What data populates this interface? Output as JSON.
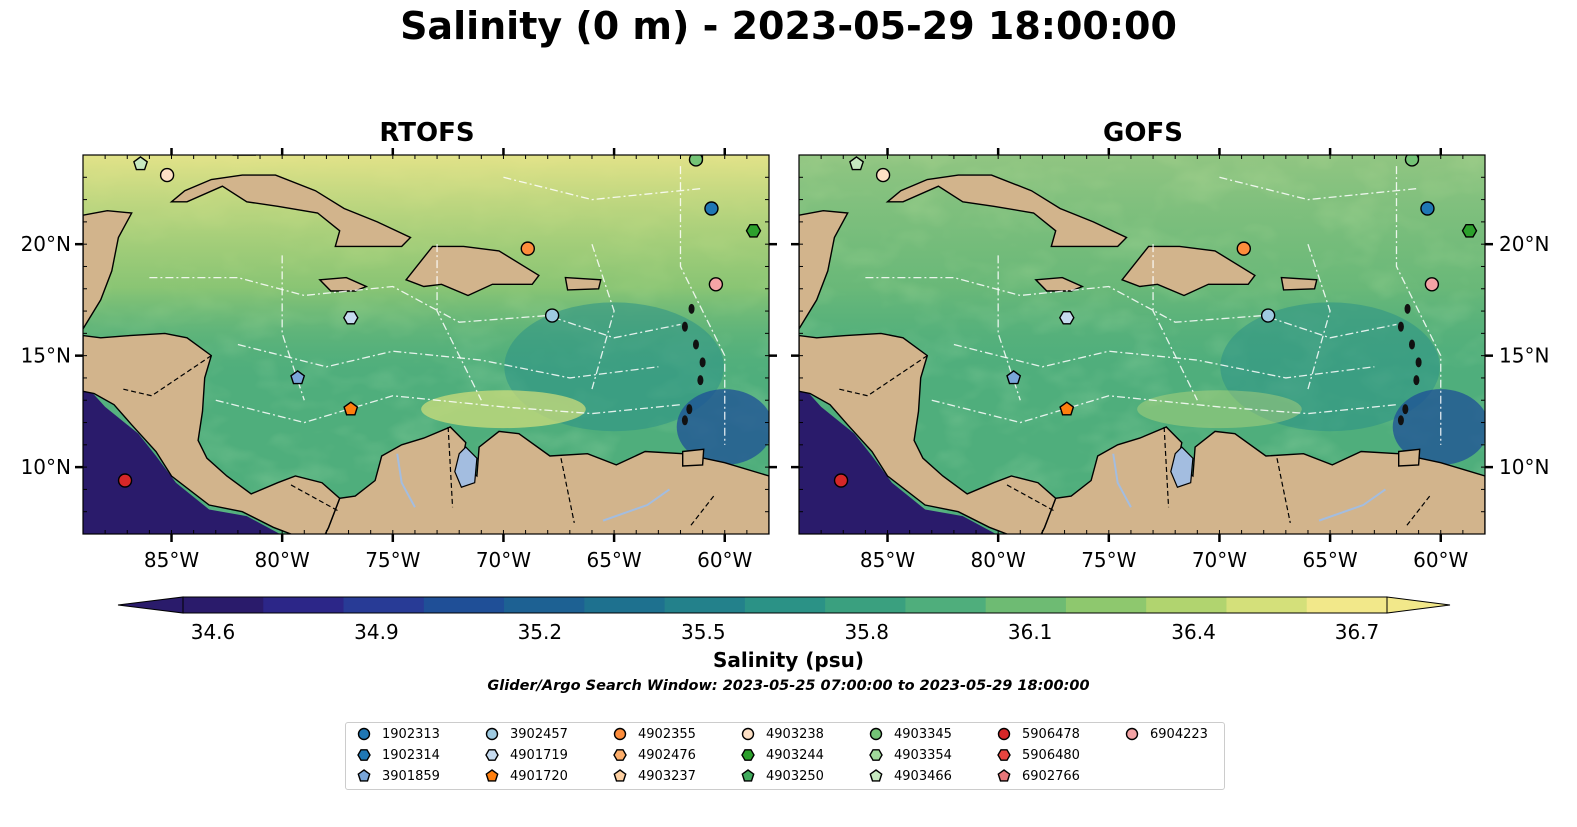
{
  "title": "Salinity (0 m) - 2023-05-29 18:00:00",
  "panels": [
    {
      "title": "RTOFS"
    },
    {
      "title": "GOFS"
    }
  ],
  "map": {
    "lon_range": [
      -89,
      -58
    ],
    "lat_range": [
      7,
      24
    ],
    "lon_ticks": [
      {
        "value": -85,
        "label": "85°W"
      },
      {
        "value": -80,
        "label": "80°W"
      },
      {
        "value": -75,
        "label": "75°W"
      },
      {
        "value": -70,
        "label": "70°W"
      },
      {
        "value": -65,
        "label": "65°W"
      },
      {
        "value": -60,
        "label": "60°W"
      }
    ],
    "lat_ticks": [
      {
        "value": 10,
        "label": "10°N"
      },
      {
        "value": 15,
        "label": "15°N"
      },
      {
        "value": 20,
        "label": "20°N"
      }
    ],
    "colors": {
      "land": "#d2b48c",
      "rivers": "#a3bde0",
      "ocean_mid": "#4fae7c",
      "fresh": "#2a1b6b",
      "salty": "#f2e88a"
    }
  },
  "colorbar": {
    "label": "Salinity (psu)",
    "min": 34.6,
    "max": 36.7,
    "ticks": [
      "34.6",
      "34.9",
      "35.2",
      "35.5",
      "35.8",
      "36.1",
      "36.4",
      "36.7"
    ],
    "colors": [
      "#2a1b6b",
      "#2c2688",
      "#283b96",
      "#1f4f97",
      "#1d6193",
      "#1e718f",
      "#23818b",
      "#2b9286",
      "#3aa07f",
      "#4fae7c",
      "#6ebb73",
      "#8ec86e",
      "#b1d46f",
      "#d4e07a",
      "#f2e88a"
    ]
  },
  "search_window": "Glider/Argo Search Window: 2023-05-25 07:00:00 to 2023-05-29 18:00:00",
  "legend": [
    {
      "id": "1902313",
      "marker": "circle",
      "color": "#1f77b4"
    },
    {
      "id": "1902314",
      "marker": "hexagon",
      "color": "#1f77b4"
    },
    {
      "id": "3901859",
      "marker": "pentagon",
      "color": "#7aa6d9"
    },
    {
      "id": "3902457",
      "marker": "circle",
      "color": "#9ecae1"
    },
    {
      "id": "4901719",
      "marker": "hexagon",
      "color": "#c6dbef"
    },
    {
      "id": "4901720",
      "marker": "pentagon",
      "color": "#ff7f0e"
    },
    {
      "id": "4902355",
      "marker": "circle",
      "color": "#fd8d3c"
    },
    {
      "id": "4902476",
      "marker": "hexagon",
      "color": "#fdae6b"
    },
    {
      "id": "4903237",
      "marker": "pentagon",
      "color": "#fdd0a2"
    },
    {
      "id": "4903238",
      "marker": "circle",
      "color": "#fde0c5"
    },
    {
      "id": "4903244",
      "marker": "hexagon",
      "color": "#2ca02c"
    },
    {
      "id": "4903250",
      "marker": "pentagon",
      "color": "#41ab5d"
    },
    {
      "id": "4903345",
      "marker": "circle",
      "color": "#74c476"
    },
    {
      "id": "4903354",
      "marker": "hexagon",
      "color": "#a1d99b"
    },
    {
      "id": "4903466",
      "marker": "pentagon",
      "color": "#c7e9c0"
    },
    {
      "id": "5906478",
      "marker": "circle",
      "color": "#d62728"
    },
    {
      "id": "5906480",
      "marker": "hexagon",
      "color": "#e6443f"
    },
    {
      "id": "6902766",
      "marker": "pentagon",
      "color": "#e7777a"
    },
    {
      "id": "6904223",
      "marker": "circle",
      "color": "#f4a3a5"
    }
  ],
  "floats": [
    {
      "id": "1902313",
      "lon": -60.6,
      "lat": 21.6
    },
    {
      "id": "3902457",
      "lon": -67.8,
      "lat": 16.8
    },
    {
      "id": "4901719",
      "lon": -76.9,
      "lat": 16.7
    },
    {
      "id": "3901859",
      "lon": -79.3,
      "lat": 14.0
    },
    {
      "id": "4901720",
      "lon": -76.9,
      "lat": 12.6
    },
    {
      "id": "4902355",
      "lon": -68.9,
      "lat": 19.8
    },
    {
      "id": "4903238",
      "lon": -85.2,
      "lat": 23.1
    },
    {
      "id": "4903244",
      "lon": -58.7,
      "lat": 20.6
    },
    {
      "id": "4903345",
      "lon": -61.3,
      "lat": 23.8
    },
    {
      "id": "4903466",
      "lon": -86.4,
      "lat": 23.6
    },
    {
      "id": "5906478",
      "lon": -87.1,
      "lat": 9.4
    },
    {
      "id": "6904223",
      "lon": -60.4,
      "lat": 18.2
    }
  ]
}
